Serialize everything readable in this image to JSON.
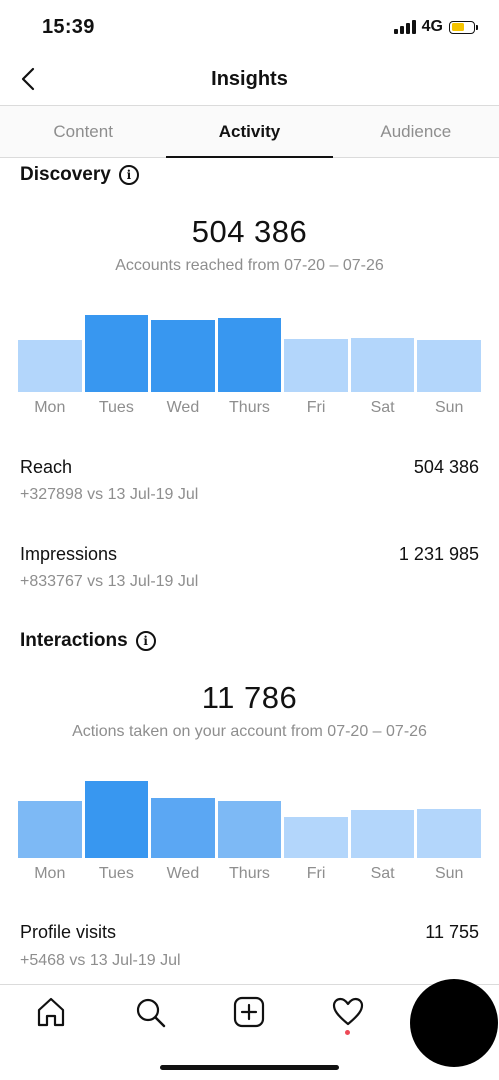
{
  "status": {
    "time": "15:39",
    "network": "4G"
  },
  "nav": {
    "title": "Insights"
  },
  "tabs": [
    {
      "label": "Content",
      "active": false
    },
    {
      "label": "Activity",
      "active": true
    },
    {
      "label": "Audience",
      "active": false
    }
  ],
  "discovery": {
    "title": "Discovery",
    "total": "504 386",
    "subtitle": "Accounts reached from  07-20 – 07-26",
    "chart_data": {
      "type": "bar",
      "categories": [
        "Mon",
        "Tues",
        "Wed",
        "Thurs",
        "Fri",
        "Sat",
        "Sun"
      ],
      "values": [
        56,
        84,
        78,
        80,
        58,
        59,
        56
      ],
      "highlight": [
        false,
        true,
        true,
        true,
        false,
        false,
        false
      ]
    },
    "metrics": [
      {
        "label": "Reach",
        "value": "504 386",
        "sub": "+327898 vs 13 Jul-19 Jul"
      },
      {
        "label": "Impressions",
        "value": "1 231 985",
        "sub": "+833767 vs 13 Jul-19 Jul"
      }
    ]
  },
  "interactions": {
    "title": "Interactions",
    "total": "11 786",
    "subtitle": "Actions taken on your account from 07-20 – 07-26",
    "chart_data": {
      "type": "bar",
      "categories": [
        "Mon",
        "Tues",
        "Wed",
        "Thurs",
        "Fri",
        "Sat",
        "Sun"
      ],
      "values": [
        62,
        84,
        65,
        62,
        45,
        52,
        53
      ],
      "shades": [
        "#7db9f5",
        "#3897f0",
        "#5ba7f3",
        "#7db9f5",
        "#b3d6fb",
        "#b3d6fb",
        "#b3d6fb"
      ]
    },
    "metrics": [
      {
        "label": "Profile visits",
        "value": "11 755",
        "sub": "+5468 vs 13 Jul-19 Jul"
      }
    ]
  },
  "colors": {
    "bar_dark": "#3897f0",
    "bar_light": "#b3d6fb",
    "muted_text": "#8e8e8e"
  },
  "bottom_nav": [
    "home-icon",
    "search-icon",
    "new-post-icon",
    "activity-heart-icon",
    "profile-avatar"
  ]
}
